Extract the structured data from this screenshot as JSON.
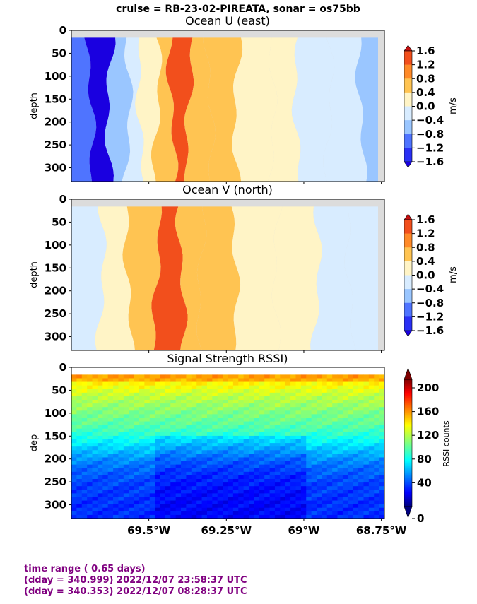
{
  "suptitle": "cruise = RB-23-02-PIREATA,  sonar = os75bb",
  "footer": {
    "line1": "time range ( 0.65 days)",
    "line2": "(dday = 340.999) 2022/12/07 23:58:37 UTC",
    "line3": "(dday = 340.353) 2022/12/07 08:28:37 UTC"
  },
  "colors": {
    "nodata": "#dcdcdc",
    "diverging": [
      "#1a00e0",
      "#2a30f5",
      "#4f74ff",
      "#9ac6ff",
      "#d8ecff",
      "#fff4c6",
      "#ffc452",
      "#ff8a28",
      "#f24f1c",
      "#c41010"
    ],
    "jet_stops": [
      "#00007f",
      "#0000ff",
      "#007fff",
      "#00ffff",
      "#7fff7f",
      "#ffff00",
      "#ff7f00",
      "#ff0000",
      "#7f0000"
    ]
  },
  "chart_data": [
    {
      "type": "heatmap",
      "title": "Ocean U (east)",
      "ylabel": "depth",
      "ylim": [
        330,
        0
      ],
      "yticks": [
        0,
        50,
        100,
        150,
        200,
        250,
        300
      ],
      "xlim": [
        69.75,
        68.74
      ],
      "colorbar": {
        "label": "m/s",
        "min": -1.6,
        "max": 1.6,
        "ticks": [
          "1.6",
          "1.2",
          "0.8",
          "0.4",
          "0.0",
          "−0.4",
          "−0.8",
          "−1.2",
          "−1.6"
        ]
      },
      "bands": [
        {
          "lon": 69.72,
          "value": -0.9
        },
        {
          "lon": 69.66,
          "value": -1.3
        },
        {
          "lon": 69.59,
          "value": -0.5
        },
        {
          "lon": 69.55,
          "value": -0.2
        },
        {
          "lon": 69.5,
          "value": 0.15
        },
        {
          "lon": 69.45,
          "value": 0.6
        },
        {
          "lon": 69.4,
          "value": 1.0
        },
        {
          "lon": 69.34,
          "value": 0.6
        },
        {
          "lon": 69.27,
          "value": 0.55
        },
        {
          "lon": 69.16,
          "value": 0.15
        },
        {
          "lon": 69.05,
          "value": 0.05
        },
        {
          "lon": 68.99,
          "value": -0.2
        },
        {
          "lon": 68.85,
          "value": -0.25
        },
        {
          "lon": 68.78,
          "value": -0.5
        }
      ]
    },
    {
      "type": "heatmap",
      "title": "Ocean V (north)",
      "ylabel": "depth",
      "ylim": [
        330,
        0
      ],
      "yticks": [
        0,
        50,
        100,
        150,
        200,
        250,
        300
      ],
      "xlim": [
        69.75,
        68.74
      ],
      "colorbar": {
        "label": "m/s",
        "min": -1.6,
        "max": 1.6,
        "ticks": [
          "1.6",
          "1.2",
          "0.8",
          "0.4",
          "0.0",
          "−0.4",
          "−0.8",
          "−1.2",
          "−1.6"
        ]
      },
      "bands": [
        {
          "lon": 69.7,
          "value": -0.2
        },
        {
          "lon": 69.61,
          "value": 0.15
        },
        {
          "lon": 69.52,
          "value": 0.6
        },
        {
          "lon": 69.43,
          "value": 1.0
        },
        {
          "lon": 69.36,
          "value": 0.6
        },
        {
          "lon": 69.3,
          "value": 0.5
        },
        {
          "lon": 69.15,
          "value": 0.15
        },
        {
          "lon": 69.02,
          "value": 0.1
        },
        {
          "lon": 68.9,
          "value": -0.15
        },
        {
          "lon": 68.8,
          "value": -0.3
        }
      ]
    },
    {
      "type": "heatmap",
      "title": "Signal Strength RSSI)",
      "ylabel": "dep",
      "ylim": [
        330,
        0
      ],
      "yticks": [
        0,
        50,
        100,
        150,
        200,
        250,
        300
      ],
      "xlim": [
        69.75,
        68.74
      ],
      "xticks": [
        "69.5°W",
        "69.25°W",
        "69°W",
        "68.75°W"
      ],
      "xtick_values": [
        69.5,
        69.25,
        69.0,
        68.75
      ],
      "colorbar": {
        "label": "RSSI counts",
        "min": 0,
        "max": 225,
        "ticks": [
          "200",
          "160",
          "120",
          "80",
          "40",
          "0"
        ],
        "tick_values": [
          200,
          160,
          120,
          80,
          40,
          0
        ]
      },
      "profile": {
        "depths": [
          20,
          40,
          60,
          80,
          100,
          120,
          140,
          160,
          180,
          200,
          220,
          240,
          260,
          280,
          300,
          330
        ],
        "counts": [
          150,
          140,
          128,
          120,
          112,
          106,
          98,
          85,
          72,
          60,
          52,
          46,
          42,
          40,
          38,
          38
        ]
      }
    }
  ]
}
